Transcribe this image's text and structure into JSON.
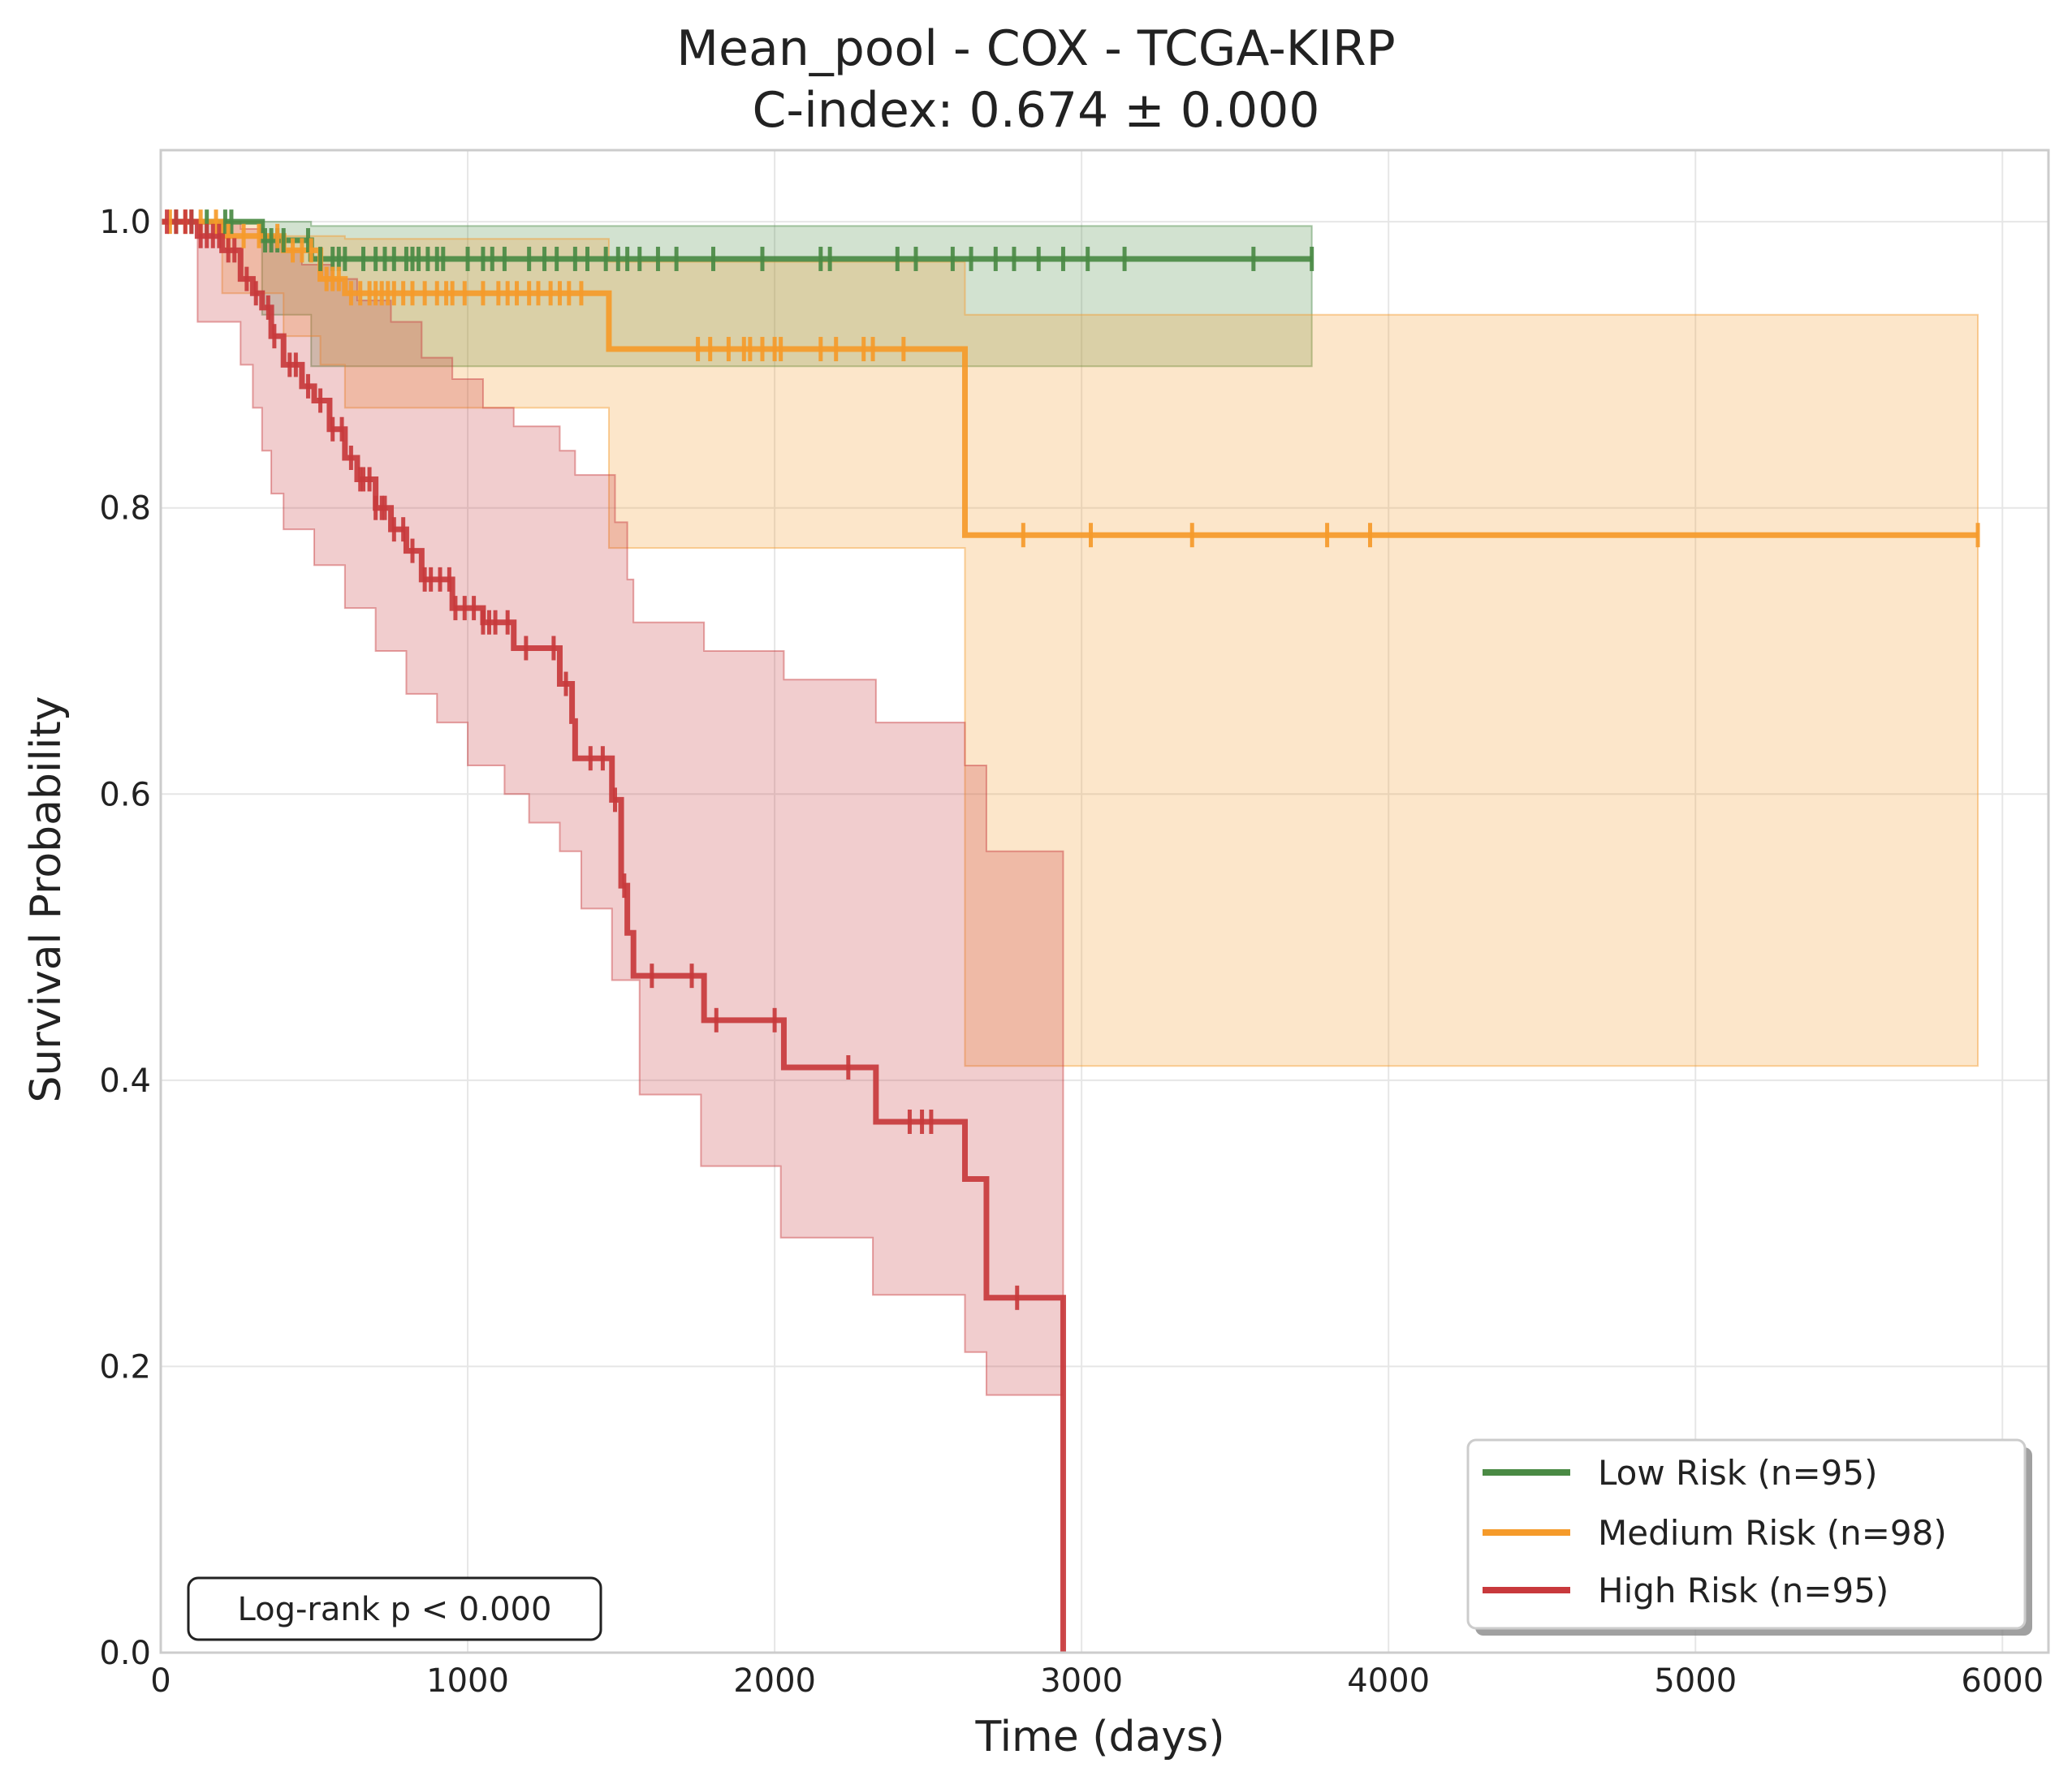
{
  "chart_data": {
    "type": "line",
    "subtype": "kaplan-meier",
    "title": "Mean_pool - COX - TCGA-KIRP",
    "subtitle": "C-index: 0.674 ± 0.000",
    "xlabel": "Time (days)",
    "ylabel": "Survival Probability",
    "xlim": [
      0,
      6150
    ],
    "ylim": [
      0,
      1.05
    ],
    "x_ticks": [
      0,
      1000,
      2000,
      3000,
      4000,
      5000,
      6000
    ],
    "y_ticks": [
      0.0,
      0.2,
      0.4,
      0.6,
      0.8,
      1.0
    ],
    "x_tick_labels": [
      "0",
      "1000",
      "2000",
      "3000",
      "4000",
      "5000",
      "6000"
    ],
    "y_tick_labels": [
      "0.0",
      "0.2",
      "0.4",
      "0.6",
      "0.8",
      "1.0"
    ],
    "grid": true,
    "legend_position": "bottom-right",
    "annotation": "Log-rank p < 0.000",
    "series": [
      {
        "name": "Low Risk (n=95)",
        "color": "#4a8a44",
        "x": [
          0,
          330,
          490,
          3750
        ],
        "y": [
          1.0,
          0.987,
          0.974,
          0.974
        ],
        "ci_lower": [
          1.0,
          0.935,
          0.899,
          0.899
        ],
        "ci_upper": [
          1.0,
          1.0,
          0.997,
          0.997
        ],
        "ci_lower_steps": [
          [
            0,
            1.0
          ],
          [
            330,
            0.935
          ],
          [
            490,
            0.899
          ],
          [
            3750,
            0.899
          ]
        ],
        "ci_upper_steps": [
          [
            0,
            1.0
          ],
          [
            330,
            1.0
          ],
          [
            490,
            0.997
          ],
          [
            2630,
            0.997
          ],
          [
            3750,
            0.997
          ]
        ],
        "censor_times": [
          50,
          100,
          150,
          210,
          230,
          340,
          360,
          380,
          400,
          480,
          520,
          560,
          580,
          600,
          660,
          700,
          730,
          760,
          800,
          820,
          840,
          870,
          900,
          920,
          1000,
          1050,
          1080,
          1120,
          1200,
          1250,
          1290,
          1350,
          1390,
          1450,
          1490,
          1520,
          1560,
          1620,
          1680,
          1800,
          1960,
          2150,
          2180,
          2400,
          2460,
          2580,
          2640,
          2720,
          2780,
          2860,
          2940,
          3020,
          3140,
          3560,
          3750
        ]
      },
      {
        "name": "Medium Risk (n=98)",
        "color": "#f59a2a",
        "x": [
          0,
          200,
          400,
          520,
          600,
          1460,
          2620,
          5920
        ],
        "y": [
          1.0,
          0.99,
          0.98,
          0.96,
          0.95,
          0.911,
          0.781,
          0.781
        ],
        "ci_lower_steps": [
          [
            0,
            1.0
          ],
          [
            200,
            0.95
          ],
          [
            400,
            0.92
          ],
          [
            520,
            0.9
          ],
          [
            600,
            0.87
          ],
          [
            1460,
            0.772
          ],
          [
            2620,
            0.41
          ],
          [
            5920,
            0.41
          ]
        ],
        "ci_upper_steps": [
          [
            0,
            1.0
          ],
          [
            330,
            0.99
          ],
          [
            600,
            0.988
          ],
          [
            1460,
            0.972
          ],
          [
            2620,
            0.935
          ],
          [
            5920,
            0.935
          ]
        ],
        "censor_times": [
          30,
          80,
          130,
          180,
          220,
          270,
          320,
          380,
          430,
          460,
          490,
          540,
          560,
          580,
          620,
          650,
          680,
          700,
          720,
          740,
          760,
          790,
          820,
          860,
          900,
          930,
          950,
          990,
          1050,
          1100,
          1130,
          1160,
          1200,
          1230,
          1270,
          1300,
          1330,
          1370,
          1750,
          1790,
          1850,
          1900,
          1920,
          1960,
          2000,
          2020,
          2150,
          2200,
          2290,
          2320,
          2420,
          2810,
          3030,
          3360,
          3800,
          3940,
          5920
        ]
      },
      {
        "name": "High Risk (n=95)",
        "color": "#c8393c",
        "x": [
          0,
          120,
          200,
          260,
          300,
          330,
          360,
          400,
          460,
          500,
          550,
          600,
          640,
          700,
          750,
          800,
          850,
          950,
          1050,
          1150,
          1300,
          1340,
          1350,
          1470,
          1500,
          1520,
          1540,
          1770,
          2030,
          2330,
          2620,
          2690,
          2940
        ],
        "y": [
          1.0,
          0.99,
          0.98,
          0.96,
          0.95,
          0.94,
          0.92,
          0.9,
          0.885,
          0.875,
          0.855,
          0.835,
          0.82,
          0.8,
          0.785,
          0.77,
          0.75,
          0.73,
          0.72,
          0.702,
          0.677,
          0.651,
          0.625,
          0.596,
          0.536,
          0.503,
          0.473,
          0.442,
          0.409,
          0.371,
          0.331,
          0.248,
          0.165
        ],
        "end_drop": [
          2940,
          0.0
        ],
        "ci_lower_steps": [
          [
            0,
            1.0
          ],
          [
            120,
            0.93
          ],
          [
            260,
            0.9
          ],
          [
            300,
            0.87
          ],
          [
            330,
            0.84
          ],
          [
            360,
            0.81
          ],
          [
            400,
            0.785
          ],
          [
            500,
            0.76
          ],
          [
            600,
            0.73
          ],
          [
            700,
            0.7
          ],
          [
            800,
            0.67
          ],
          [
            900,
            0.65
          ],
          [
            1000,
            0.62
          ],
          [
            1120,
            0.6
          ],
          [
            1200,
            0.58
          ],
          [
            1300,
            0.56
          ],
          [
            1370,
            0.52
          ],
          [
            1470,
            0.47
          ],
          [
            1560,
            0.39
          ],
          [
            1760,
            0.34
          ],
          [
            2020,
            0.29
          ],
          [
            2320,
            0.25
          ],
          [
            2620,
            0.21
          ],
          [
            2690,
            0.18
          ],
          [
            2940,
            0.0
          ]
        ],
        "ci_upper_steps": [
          [
            0,
            1.0
          ],
          [
            120,
            1.0
          ],
          [
            260,
            0.995
          ],
          [
            330,
            0.99
          ],
          [
            400,
            0.98
          ],
          [
            460,
            0.97
          ],
          [
            560,
            0.96
          ],
          [
            640,
            0.945
          ],
          [
            750,
            0.93
          ],
          [
            850,
            0.905
          ],
          [
            950,
            0.89
          ],
          [
            1050,
            0.87
          ],
          [
            1150,
            0.857
          ],
          [
            1300,
            0.84
          ],
          [
            1350,
            0.823
          ],
          [
            1480,
            0.79
          ],
          [
            1520,
            0.75
          ],
          [
            1540,
            0.72
          ],
          [
            1770,
            0.7
          ],
          [
            2030,
            0.68
          ],
          [
            2330,
            0.65
          ],
          [
            2620,
            0.62
          ],
          [
            2690,
            0.56
          ],
          [
            2940,
            0.49
          ]
        ],
        "censor_times": [
          20,
          50,
          80,
          100,
          130,
          150,
          170,
          190,
          220,
          240,
          280,
          310,
          350,
          370,
          420,
          440,
          480,
          520,
          560,
          590,
          620,
          650,
          660,
          680,
          700,
          720,
          730,
          760,
          790,
          820,
          860,
          880,
          910,
          940,
          960,
          990,
          1020,
          1050,
          1070,
          1090,
          1130,
          1190,
          1280,
          1320,
          1400,
          1440,
          1480,
          1510,
          1600,
          1730,
          1810,
          2000,
          2240,
          2440,
          2480,
          2510,
          2790
        ]
      }
    ]
  }
}
